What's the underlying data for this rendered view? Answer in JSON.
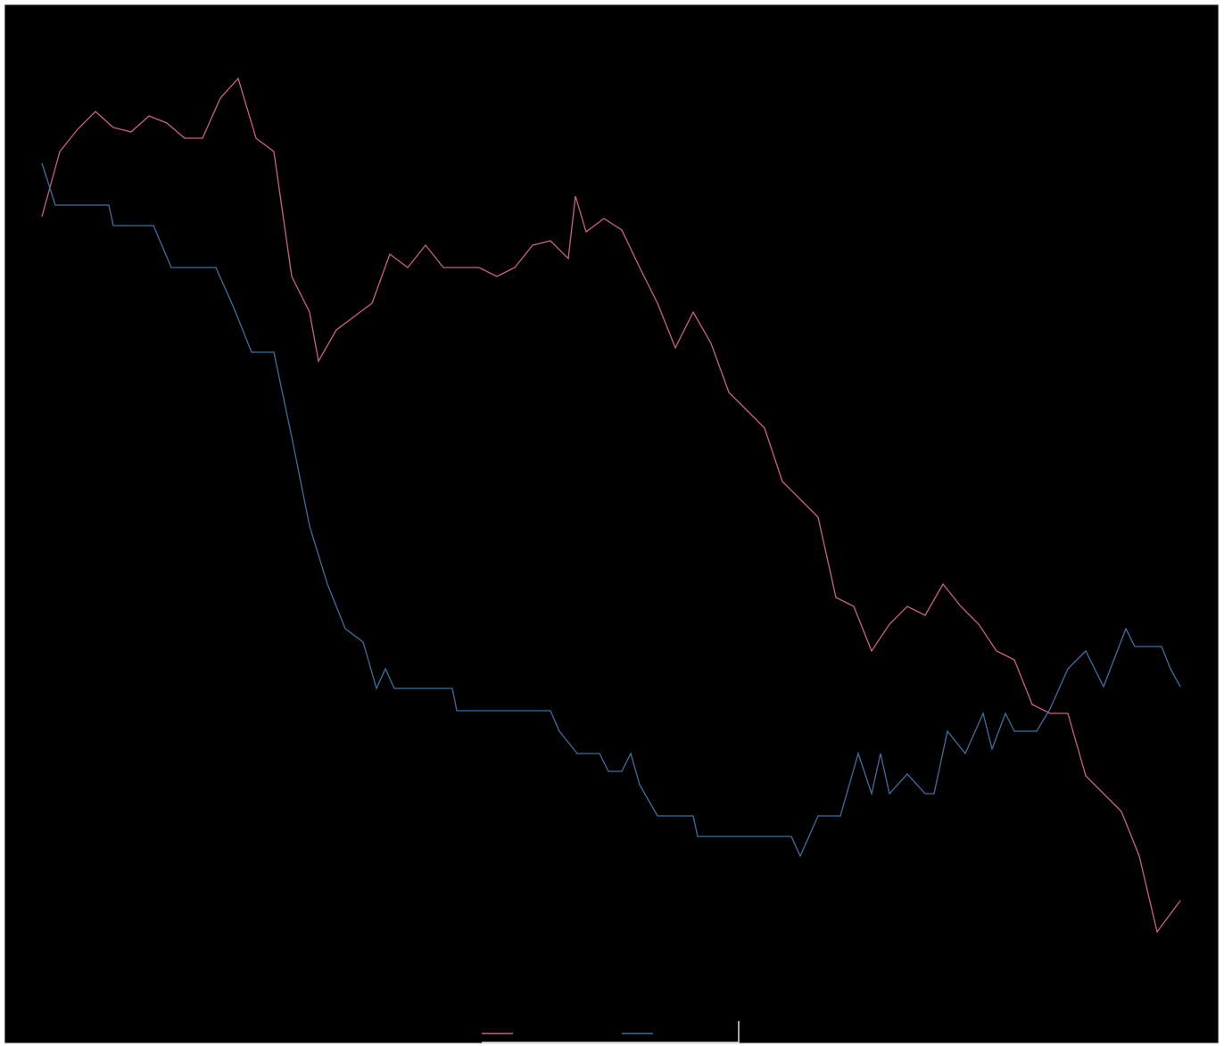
{
  "chart_data": {
    "type": "line",
    "xlim": [
      0,
      1276
    ],
    "ylim": [
      0,
      110
    ],
    "series": [
      {
        "color": "#c8637f",
        "x": [
          0,
          20,
          40,
          60,
          80,
          100,
          120,
          140,
          160,
          180,
          200,
          220,
          240,
          260,
          280,
          300,
          310,
          330,
          350,
          370,
          390,
          410,
          430,
          450,
          470,
          490,
          510,
          530,
          550,
          570,
          590,
          598,
          610,
          630,
          650,
          670,
          690,
          710,
          730,
          750,
          770,
          790,
          810,
          830,
          850,
          870,
          890,
          910,
          930,
          950,
          970,
          990,
          1010,
          1030,
          1050,
          1070,
          1090,
          1110,
          1130,
          1150,
          1170,
          1190,
          1210,
          1230,
          1250,
          1276
        ],
        "values": [
          85.7,
          93,
          95.5,
          97.5,
          95.7,
          95.2,
          97,
          96.2,
          94.5,
          94.5,
          99,
          101.2,
          94.5,
          93,
          79,
          75,
          69.5,
          73,
          74.5,
          76,
          81.5,
          80,
          82.5,
          80,
          80,
          80,
          79,
          80,
          82.5,
          83,
          81,
          88,
          84,
          85.5,
          84.2,
          80,
          76,
          71,
          75,
          71.5,
          66,
          64,
          62,
          56,
          54,
          52,
          43,
          42,
          37,
          40,
          42,
          41,
          44.5,
          42,
          40,
          37,
          36,
          31,
          30,
          30,
          23,
          21,
          19,
          14,
          5.5,
          9
        ]
      },
      {
        "color": "#3f6f9f",
        "x": [
          0,
          15,
          75,
          80,
          125,
          145,
          195,
          215,
          235,
          260,
          280,
          300,
          320,
          340,
          360,
          375,
          385,
          395,
          460,
          465,
          570,
          580,
          600,
          625,
          635,
          650,
          660,
          670,
          690,
          730,
          735,
          840,
          850,
          870,
          895,
          915,
          930,
          940,
          950,
          970,
          990,
          1000,
          1015,
          1035,
          1055,
          1065,
          1080,
          1090,
          1115,
          1130,
          1150,
          1170,
          1190,
          1215,
          1225,
          1255,
          1265,
          1276
        ],
        "values": [
          91.7,
          87,
          87,
          84.7,
          84.7,
          80,
          80,
          75.5,
          70.5,
          70.5,
          61,
          51,
          44.5,
          39.5,
          38,
          32.8,
          35,
          32.8,
          32.8,
          30.3,
          30.3,
          28,
          25.5,
          25.5,
          23.5,
          23.5,
          25.5,
          22,
          18.5,
          18.5,
          16.2,
          16.2,
          14,
          18.5,
          18.5,
          25.5,
          21,
          25.5,
          21,
          23.2,
          21,
          21,
          28,
          25.5,
          30,
          26,
          30,
          28,
          28,
          30.5,
          35,
          37,
          33,
          39.5,
          37.5,
          37.5,
          35,
          33
        ]
      }
    ]
  }
}
